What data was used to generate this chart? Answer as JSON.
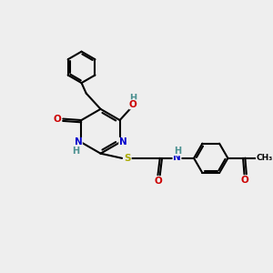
{
  "bg_color": "#eeeeee",
  "bond_color": "#000000",
  "atom_colors": {
    "N": "#0000cc",
    "O": "#cc0000",
    "S": "#aaaa00",
    "C": "#000000",
    "H": "#4a9090"
  },
  "figsize": [
    3.0,
    3.0
  ],
  "dpi": 100
}
